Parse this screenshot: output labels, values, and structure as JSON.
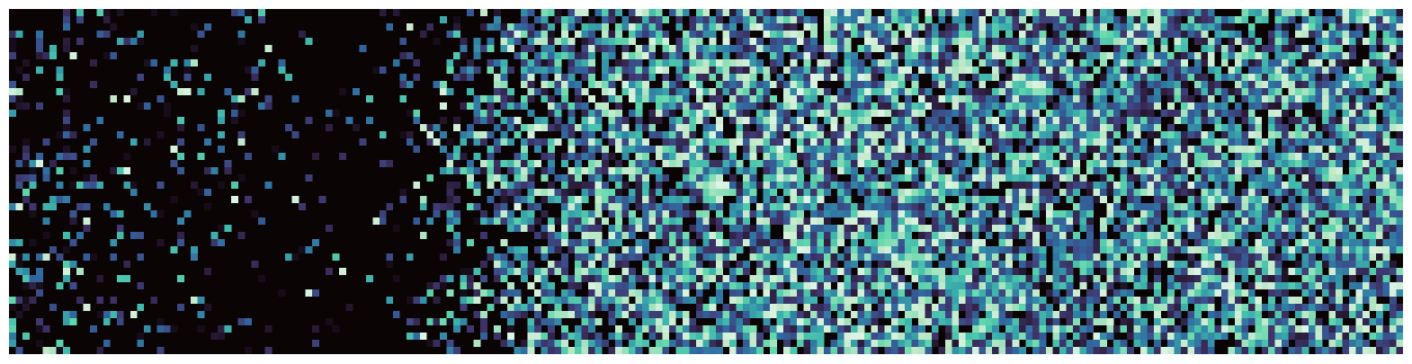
{
  "chart_data": {
    "type": "heatmap",
    "title": "",
    "xlabel": "",
    "ylabel": "",
    "axes_visible": false,
    "grid": false,
    "legend": "none",
    "colormap": "mako",
    "colormap_stops": [
      "#0b0405",
      "#2d1e3e",
      "#3e356b",
      "#3b4f8a",
      "#3069a0",
      "#348fa7",
      "#40b7ad",
      "#61d7ac",
      "#c0e8c8",
      "#def5e5"
    ],
    "rows": 48,
    "cols": 207,
    "value_range": [
      0,
      1
    ],
    "sparsity_profile": {
      "description_values_by_column_fraction": [
        {
          "col_fraction": 0.0,
          "density": 0.3,
          "mean_intensity": 0.35
        },
        {
          "col_fraction": 0.1,
          "density": 0.16,
          "mean_intensity": 0.3
        },
        {
          "col_fraction": 0.2,
          "density": 0.1,
          "mean_intensity": 0.28
        },
        {
          "col_fraction": 0.27,
          "density": 0.06,
          "mean_intensity": 0.3
        },
        {
          "col_fraction": 0.33,
          "density": 0.45,
          "mean_intensity": 0.45
        },
        {
          "col_fraction": 0.42,
          "density": 0.8,
          "mean_intensity": 0.52
        },
        {
          "col_fraction": 0.6,
          "density": 0.88,
          "mean_intensity": 0.55
        },
        {
          "col_fraction": 0.8,
          "density": 0.84,
          "mean_intensity": 0.5
        },
        {
          "col_fraction": 1.0,
          "density": 0.86,
          "mean_intensity": 0.52
        }
      ],
      "random_seed": 20240611
    }
  }
}
